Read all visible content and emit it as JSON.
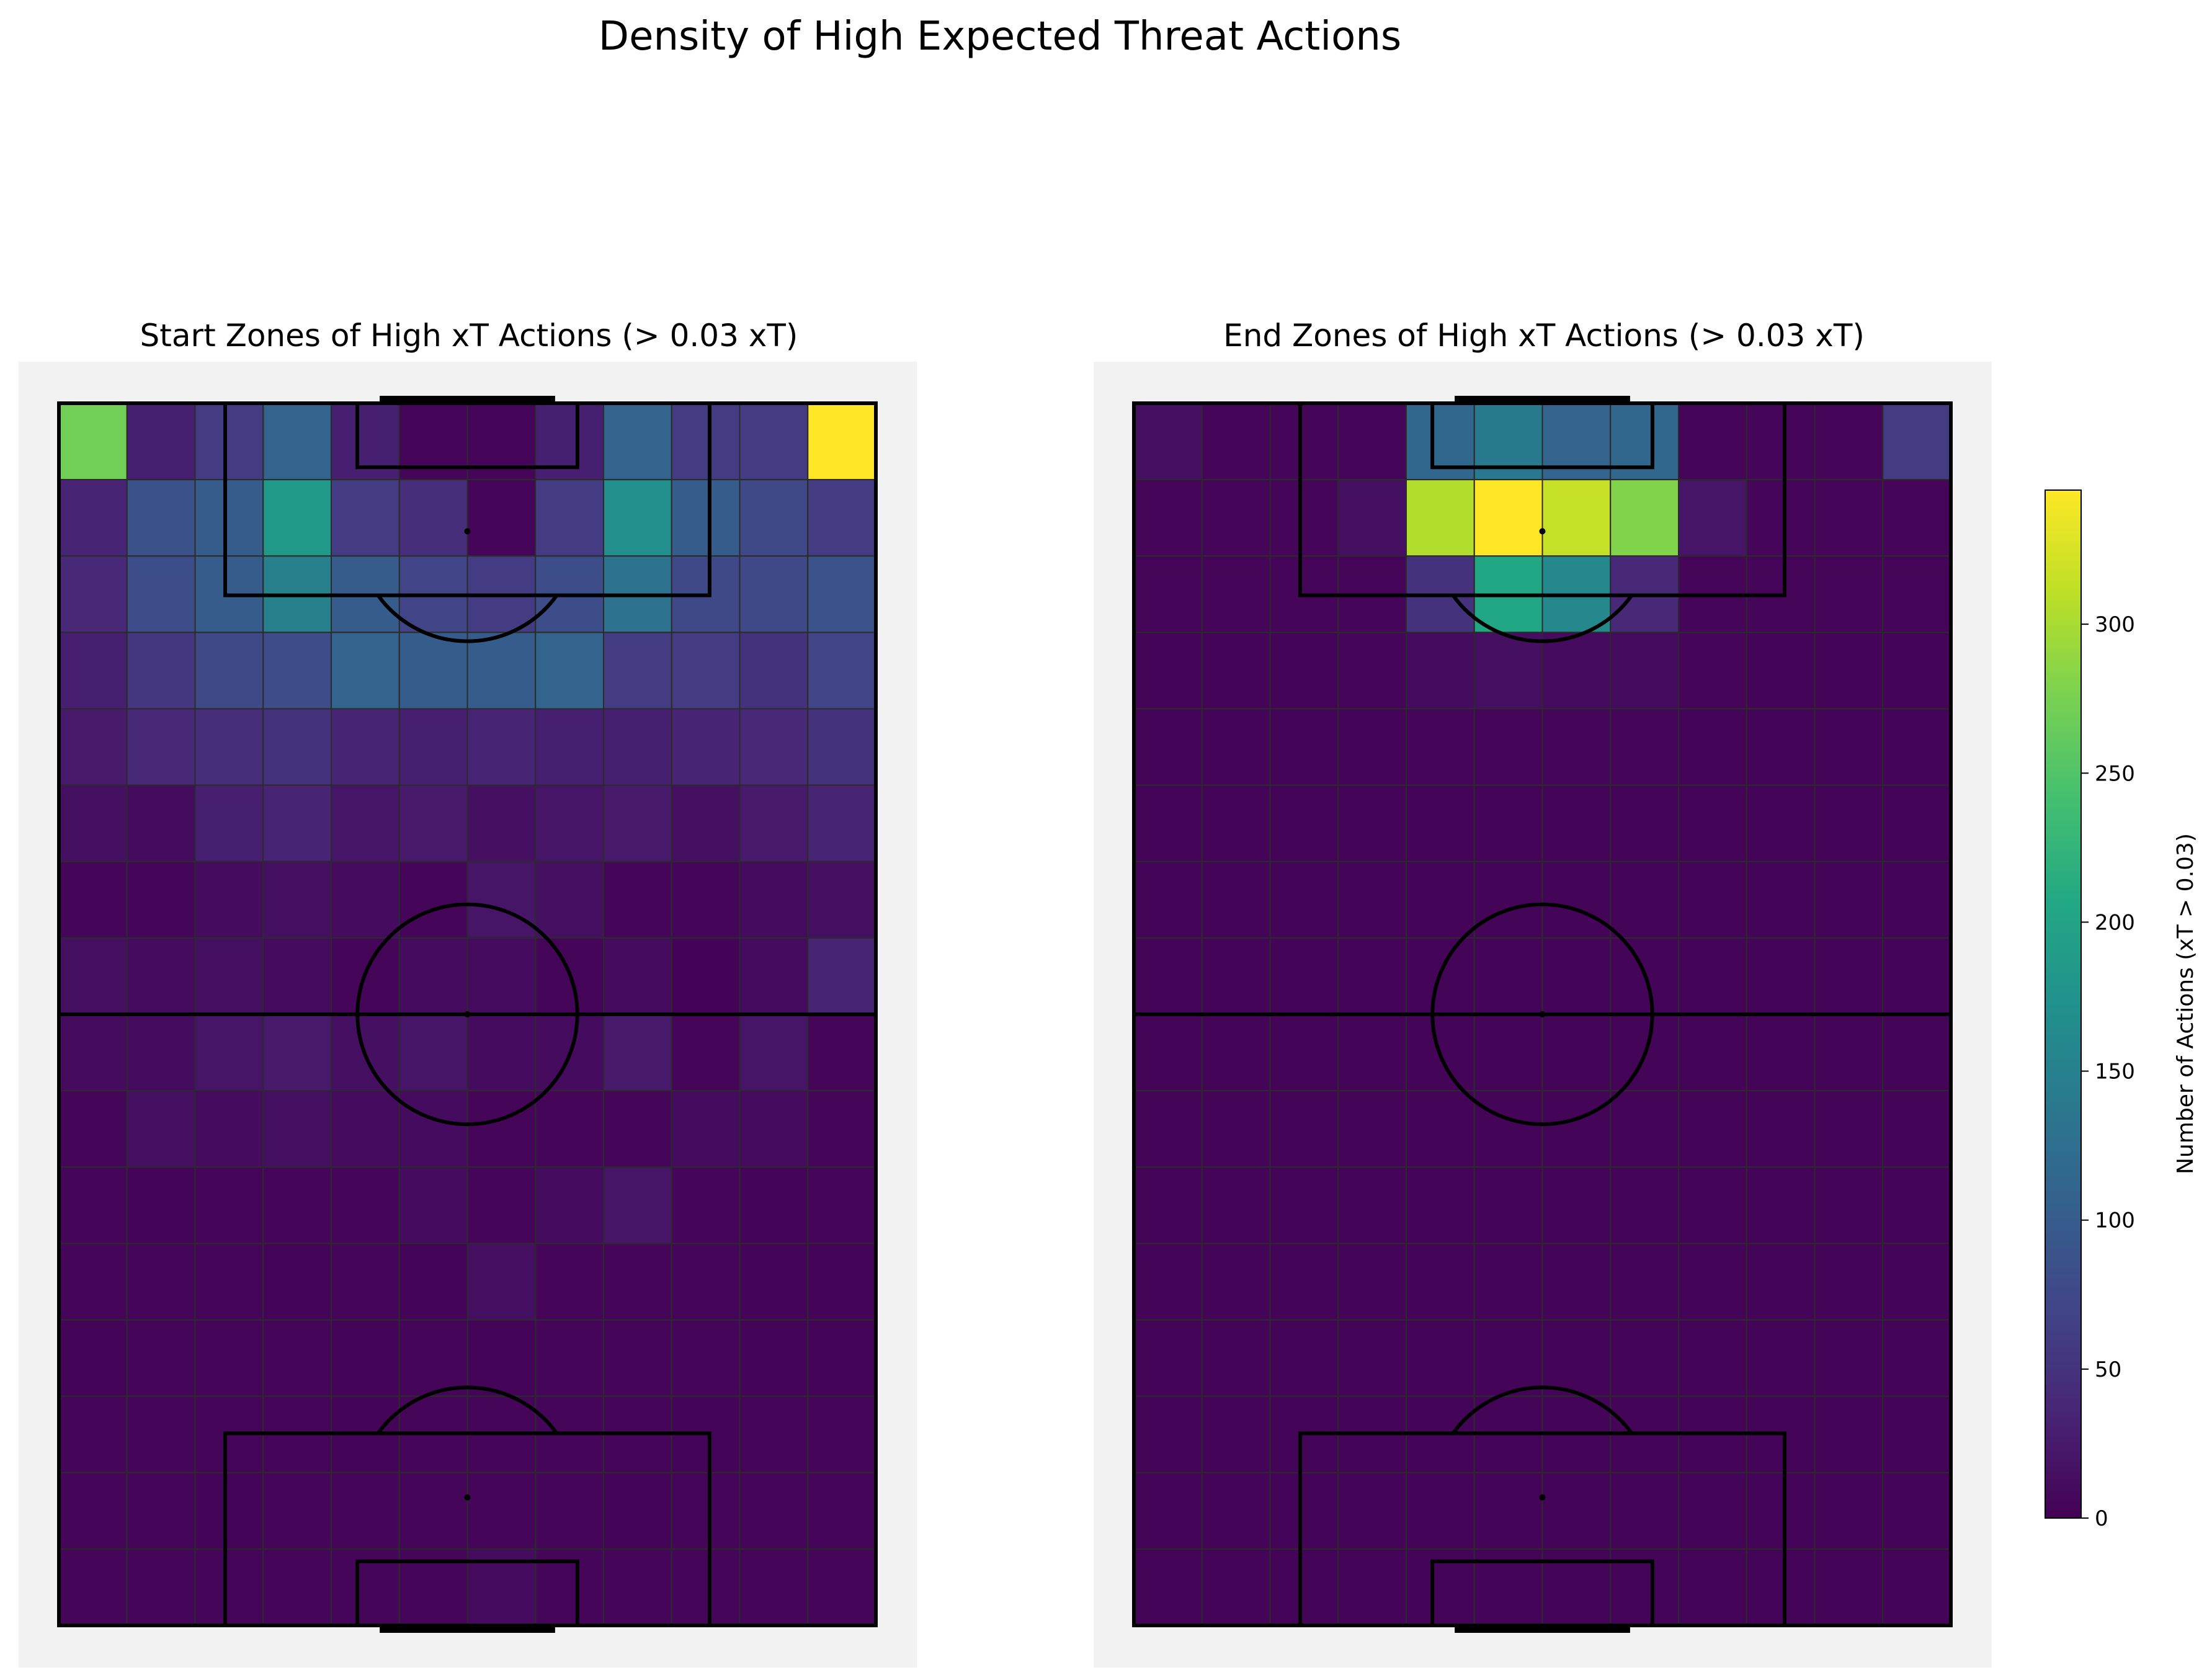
{
  "figure": {
    "title": "Density of High Expected Threat Actions"
  },
  "chart_data": [
    {
      "type": "heatmap",
      "title": "Start Zones of High xT Actions (> 0.03 xT)",
      "grid": {
        "columns": 12,
        "rows": 16
      },
      "colormap": "viridis",
      "vmin": 0,
      "vmax": 345,
      "values": [
        [
          270,
          30,
          60,
          110,
          30,
          5,
          5,
          30,
          110,
          60,
          60,
          345
        ],
        [
          35,
          85,
          100,
          185,
          60,
          45,
          5,
          60,
          170,
          100,
          75,
          60
        ],
        [
          40,
          80,
          100,
          150,
          100,
          70,
          60,
          80,
          130,
          75,
          75,
          90
        ],
        [
          30,
          55,
          75,
          80,
          110,
          100,
          100,
          110,
          60,
          60,
          50,
          70
        ],
        [
          25,
          40,
          45,
          50,
          35,
          30,
          35,
          30,
          30,
          35,
          40,
          50
        ],
        [
          15,
          10,
          30,
          35,
          20,
          25,
          15,
          20,
          25,
          15,
          25,
          35
        ],
        [
          5,
          5,
          10,
          15,
          10,
          5,
          20,
          15,
          5,
          5,
          10,
          15
        ],
        [
          15,
          10,
          15,
          10,
          5,
          10,
          10,
          5,
          10,
          2,
          10,
          35
        ],
        [
          10,
          10,
          20,
          25,
          15,
          20,
          10,
          10,
          25,
          5,
          20,
          5
        ],
        [
          5,
          15,
          10,
          15,
          10,
          10,
          5,
          5,
          5,
          10,
          10,
          5
        ],
        [
          5,
          3,
          5,
          5,
          5,
          10,
          5,
          10,
          20,
          5,
          3,
          5
        ],
        [
          5,
          5,
          5,
          3,
          5,
          3,
          15,
          5,
          5,
          5,
          3,
          3
        ],
        [
          3,
          5,
          5,
          5,
          3,
          5,
          3,
          5,
          5,
          5,
          3,
          3
        ],
        [
          5,
          5,
          5,
          5,
          3,
          5,
          5,
          5,
          5,
          3,
          5,
          5
        ],
        [
          5,
          5,
          3,
          5,
          5,
          5,
          5,
          5,
          3,
          5,
          5,
          5
        ],
        [
          5,
          5,
          5,
          5,
          5,
          5,
          10,
          5,
          5,
          5,
          5,
          5
        ]
      ]
    },
    {
      "type": "heatmap",
      "title": "End Zones of High xT Actions (> 0.03 xT)",
      "grid": {
        "columns": 12,
        "rows": 16
      },
      "colormap": "viridis",
      "vmin": 0,
      "vmax": 345,
      "values": [
        [
          15,
          5,
          5,
          5,
          115,
          140,
          110,
          115,
          5,
          5,
          5,
          60
        ],
        [
          5,
          5,
          5,
          15,
          305,
          345,
          315,
          280,
          20,
          5,
          5,
          5
        ],
        [
          5,
          5,
          5,
          5,
          50,
          205,
          160,
          40,
          5,
          5,
          5,
          5
        ],
        [
          3,
          3,
          3,
          5,
          10,
          15,
          10,
          10,
          5,
          3,
          3,
          3
        ],
        [
          3,
          3,
          3,
          3,
          5,
          5,
          5,
          5,
          3,
          3,
          3,
          3
        ],
        [
          3,
          3,
          3,
          3,
          3,
          3,
          3,
          3,
          3,
          3,
          3,
          3
        ],
        [
          3,
          3,
          3,
          3,
          3,
          3,
          3,
          3,
          3,
          3,
          3,
          3
        ],
        [
          3,
          3,
          3,
          3,
          3,
          3,
          3,
          3,
          3,
          3,
          3,
          3
        ],
        [
          3,
          3,
          3,
          3,
          3,
          3,
          3,
          3,
          3,
          3,
          3,
          3
        ],
        [
          3,
          3,
          3,
          3,
          3,
          3,
          3,
          3,
          3,
          3,
          3,
          3
        ],
        [
          3,
          3,
          3,
          3,
          3,
          3,
          3,
          3,
          3,
          3,
          3,
          3
        ],
        [
          3,
          3,
          3,
          3,
          3,
          3,
          3,
          3,
          3,
          3,
          3,
          3
        ],
        [
          3,
          3,
          3,
          3,
          3,
          3,
          3,
          3,
          3,
          3,
          3,
          3
        ],
        [
          3,
          3,
          3,
          3,
          3,
          3,
          3,
          3,
          3,
          3,
          3,
          3
        ],
        [
          3,
          3,
          3,
          3,
          3,
          3,
          3,
          3,
          3,
          3,
          3,
          3
        ],
        [
          3,
          3,
          3,
          3,
          3,
          3,
          3,
          3,
          3,
          3,
          3,
          3
        ]
      ]
    }
  ],
  "colorbar": {
    "label": "Number of Actions (xT > 0.03)",
    "ticks": [
      {
        "value": 0,
        "label": "0"
      },
      {
        "value": 50,
        "label": "50"
      },
      {
        "value": 100,
        "label": "100"
      },
      {
        "value": 150,
        "label": "150"
      },
      {
        "value": 200,
        "label": "200"
      },
      {
        "value": 250,
        "label": "250"
      },
      {
        "value": 300,
        "label": "300"
      }
    ]
  },
  "colors": {
    "pitch_background": "#f2f2f2",
    "pitch_lines": "#000000",
    "grid_lines": "#2b2b2b"
  }
}
